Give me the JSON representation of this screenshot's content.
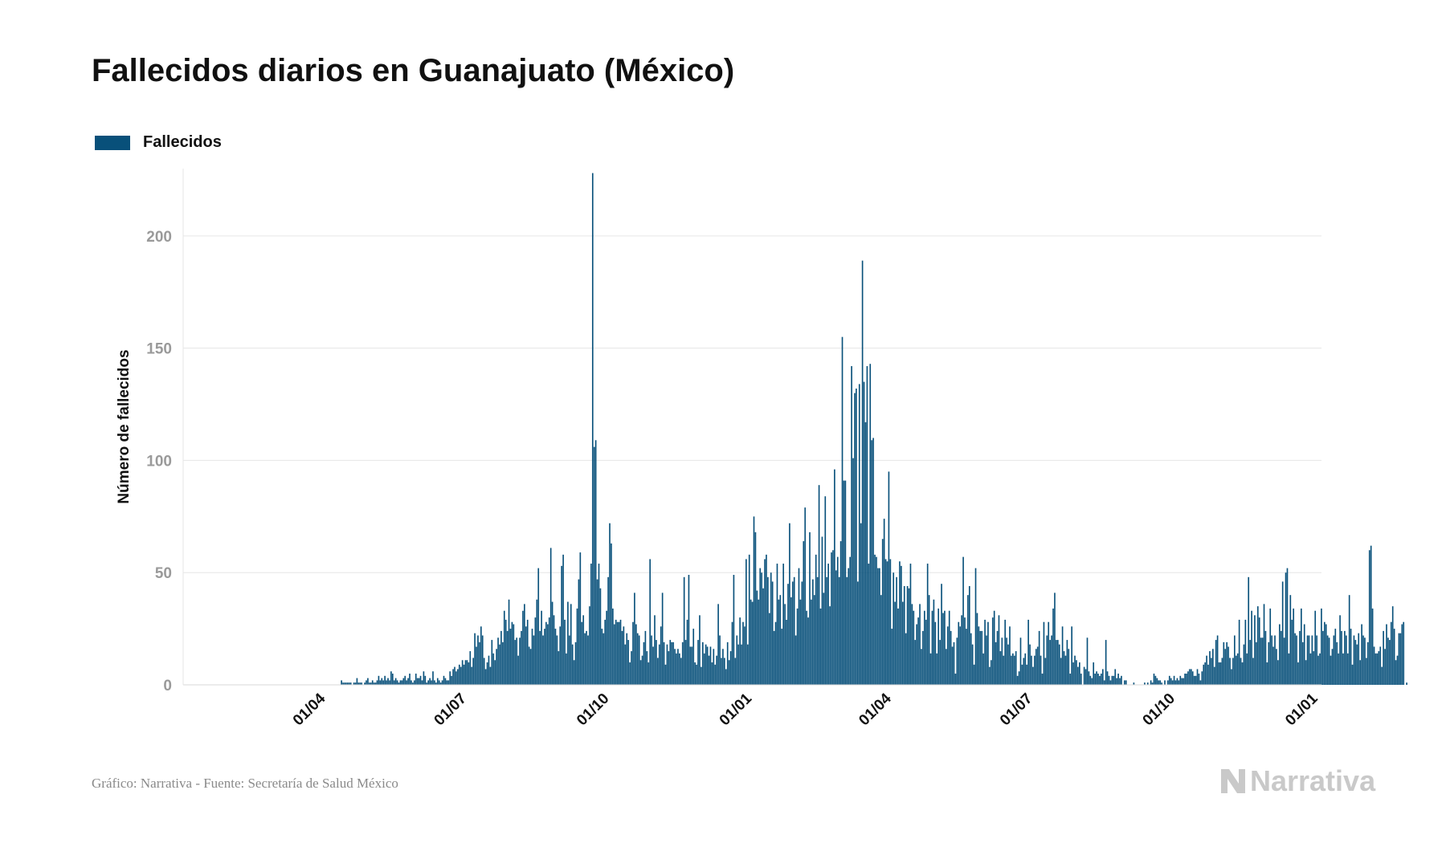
{
  "chart_data": {
    "type": "bar",
    "title": "Fallecidos diarios en Guanajuato (México)",
    "legend": [
      {
        "name": "Fallecidos",
        "color": "#08507a"
      }
    ],
    "legend_position": "top-left",
    "ylabel": "Número de fallecidos",
    "ylim": [
      0,
      230
    ],
    "yticks": [
      0,
      50,
      100,
      150,
      200
    ],
    "grid": true,
    "x_start": "2020-02-01",
    "xlim_days": [
      0,
      701
    ],
    "xticks": [
      {
        "label": "01/04",
        "day": 60
      },
      {
        "label": "01/07",
        "day": 151
      },
      {
        "label": "01/10",
        "day": 243
      },
      {
        "label": "01/01",
        "day": 335
      },
      {
        "label": "01/04",
        "day": 425
      },
      {
        "label": "01/07",
        "day": 516
      },
      {
        "label": "01/10",
        "day": 608
      },
      {
        "label": "01/01",
        "day": 700
      }
    ],
    "series": [
      {
        "name": "Fallecidos",
        "color": "#08507a",
        "start_day": 0,
        "values": [
          0,
          0,
          0,
          0,
          0,
          0,
          0,
          0,
          0,
          0,
          0,
          0,
          0,
          0,
          0,
          0,
          0,
          0,
          0,
          0,
          0,
          0,
          0,
          0,
          0,
          0,
          0,
          0,
          0,
          0,
          0,
          0,
          0,
          0,
          0,
          0,
          0,
          0,
          0,
          0,
          0,
          0,
          0,
          0,
          0,
          0,
          0,
          0,
          0,
          0,
          0,
          0,
          0,
          0,
          0,
          0,
          0,
          0,
          0,
          0,
          0,
          0,
          0,
          0,
          0,
          0,
          0,
          0,
          0,
          0,
          2,
          1,
          1,
          1,
          1,
          1,
          1,
          0,
          1,
          1,
          3,
          1,
          1,
          1,
          0,
          1,
          2,
          3,
          1,
          1,
          2,
          1,
          1,
          2,
          4,
          2,
          3,
          2,
          4,
          2,
          3,
          2,
          6,
          5,
          2,
          3,
          2,
          1,
          2,
          2,
          3,
          4,
          2,
          3,
          5,
          2,
          1,
          2,
          5,
          3,
          3,
          4,
          2,
          6,
          4,
          1,
          2,
          3,
          2,
          6,
          2,
          1,
          3,
          2,
          1,
          2,
          4,
          3,
          2,
          2,
          6,
          4,
          7,
          8,
          6,
          7,
          9,
          8,
          11,
          9,
          11,
          11,
          10,
          15,
          8,
          12,
          23,
          17,
          22,
          19,
          26,
          22,
          12,
          7,
          10,
          13,
          8,
          20,
          14,
          11,
          16,
          21,
          18,
          24,
          19,
          33,
          29,
          24,
          38,
          25,
          28,
          27,
          20,
          21,
          13,
          21,
          24,
          33,
          36,
          26,
          29,
          17,
          16,
          25,
          22,
          30,
          38,
          52,
          24,
          33,
          22,
          25,
          28,
          27,
          30,
          61,
          37,
          31,
          25,
          22,
          15,
          26,
          53,
          58,
          29,
          14,
          37,
          22,
          36,
          18,
          11,
          19,
          34,
          47,
          59,
          28,
          31,
          23,
          24,
          22,
          35,
          54,
          228,
          106,
          109,
          47,
          54,
          43,
          25,
          23,
          29,
          33,
          48,
          72,
          63,
          34,
          27,
          29,
          28,
          28,
          29,
          24,
          26,
          18,
          23,
          20,
          10,
          15,
          28,
          41,
          27,
          23,
          22,
          11,
          13,
          19,
          24,
          15,
          10,
          56,
          22,
          17,
          31,
          20,
          12,
          18,
          26,
          41,
          19,
          9,
          18,
          15,
          20,
          19,
          19,
          16,
          14,
          16,
          14,
          12,
          19,
          48,
          20,
          29,
          49,
          17,
          17,
          25,
          10,
          9,
          20,
          31,
          8,
          19,
          14,
          18,
          17,
          13,
          17,
          10,
          16,
          9,
          13,
          36,
          22,
          12,
          16,
          12,
          7,
          19,
          11,
          15,
          28,
          49,
          12,
          22,
          18,
          30,
          18,
          28,
          26,
          56,
          18,
          58,
          38,
          37,
          75,
          68,
          42,
          38,
          52,
          50,
          43,
          56,
          58,
          48,
          32,
          50,
          46,
          24,
          28,
          54,
          38,
          40,
          25,
          54,
          36,
          29,
          45,
          72,
          39,
          46,
          48,
          22,
          34,
          52,
          38,
          46,
          64,
          79,
          33,
          30,
          68,
          38,
          47,
          40,
          58,
          48,
          89,
          34,
          66,
          41,
          84,
          48,
          54,
          35,
          59,
          60,
          96,
          51,
          57,
          48,
          64,
          155,
          91,
          91,
          48,
          52,
          57,
          142,
          101,
          130,
          132,
          46,
          134,
          72,
          189,
          135,
          117,
          142,
          54,
          143,
          109,
          110,
          58,
          57,
          52,
          52,
          40,
          65,
          74,
          56,
          55,
          95,
          56,
          25,
          50,
          37,
          48,
          34,
          55,
          53,
          37,
          44,
          23,
          44,
          43,
          54,
          36,
          33,
          20,
          27,
          30,
          36,
          16,
          24,
          33,
          29,
          54,
          40,
          14,
          33,
          38,
          28,
          14,
          34,
          20,
          45,
          32,
          33,
          16,
          26,
          33,
          24,
          17,
          19,
          5,
          21,
          28,
          26,
          31,
          57,
          30,
          25,
          40,
          44,
          23,
          18,
          9,
          52,
          32,
          26,
          24,
          24,
          14,
          29,
          22,
          28,
          8,
          11,
          30,
          33,
          19,
          24,
          31,
          15,
          21,
          13,
          29,
          21,
          18,
          26,
          13,
          14,
          13,
          15,
          4,
          6,
          21,
          9,
          12,
          14,
          9,
          29,
          18,
          13,
          8,
          13,
          16,
          17,
          24,
          13,
          5,
          28,
          12,
          22,
          28,
          20,
          22,
          34,
          41,
          20,
          20,
          18,
          12,
          26,
          15,
          13,
          20,
          16,
          5,
          26,
          10,
          13,
          11,
          8,
          10,
          5,
          0,
          8,
          7,
          21,
          6,
          4,
          3,
          10,
          5,
          6,
          5,
          4,
          5,
          7,
          2,
          20,
          6,
          4,
          2,
          4,
          4,
          7,
          3,
          5,
          3,
          4,
          0,
          2,
          2,
          0,
          0,
          0,
          0,
          1,
          0,
          0,
          0,
          0,
          0,
          0,
          1,
          0,
          1,
          0,
          2,
          1,
          5,
          4,
          3,
          2,
          2,
          1,
          0,
          2,
          0,
          2,
          4,
          3,
          2,
          4,
          2,
          3,
          2,
          4,
          3,
          3,
          5,
          5,
          6,
          7,
          7,
          6,
          4,
          4,
          7,
          5,
          2,
          6,
          9,
          10,
          13,
          9,
          15,
          12,
          16,
          8,
          20,
          22,
          10,
          10,
          12,
          19,
          16,
          19,
          17,
          12,
          7,
          12,
          22,
          13,
          14,
          29,
          12,
          10,
          18,
          29,
          14,
          48,
          20,
          33,
          12,
          31,
          19,
          35,
          30,
          21,
          21,
          36,
          24,
          10,
          19,
          34,
          22,
          17,
          22,
          16,
          11,
          27,
          24,
          46,
          21,
          50,
          52,
          14,
          40,
          29,
          34,
          23,
          22,
          10,
          24,
          34,
          19,
          27,
          11,
          22,
          22,
          14,
          22,
          15,
          33,
          22,
          13,
          14,
          34,
          24,
          28,
          27,
          22,
          21,
          13,
          16,
          22,
          25,
          19,
          14,
          31,
          24,
          14,
          24,
          22,
          14,
          40,
          25,
          9,
          22,
          20,
          18,
          23,
          11,
          27,
          22,
          21,
          12,
          19,
          60,
          62,
          34,
          17,
          14,
          14,
          15,
          17,
          8,
          24,
          16,
          27,
          21,
          20,
          28,
          35,
          25,
          11,
          13,
          23,
          23,
          27,
          28,
          0,
          1,
          0,
          0
        ]
      }
    ]
  },
  "footer": {
    "source": "Gráfico: Narrativa - Fuente: Secretaría de Salud México",
    "brand": "Narrativa"
  },
  "colors": {
    "bar": "#08507a",
    "grid": "#e6e6e6",
    "tick_label": "#9a9a9a",
    "brand": "#c9c9c9"
  }
}
